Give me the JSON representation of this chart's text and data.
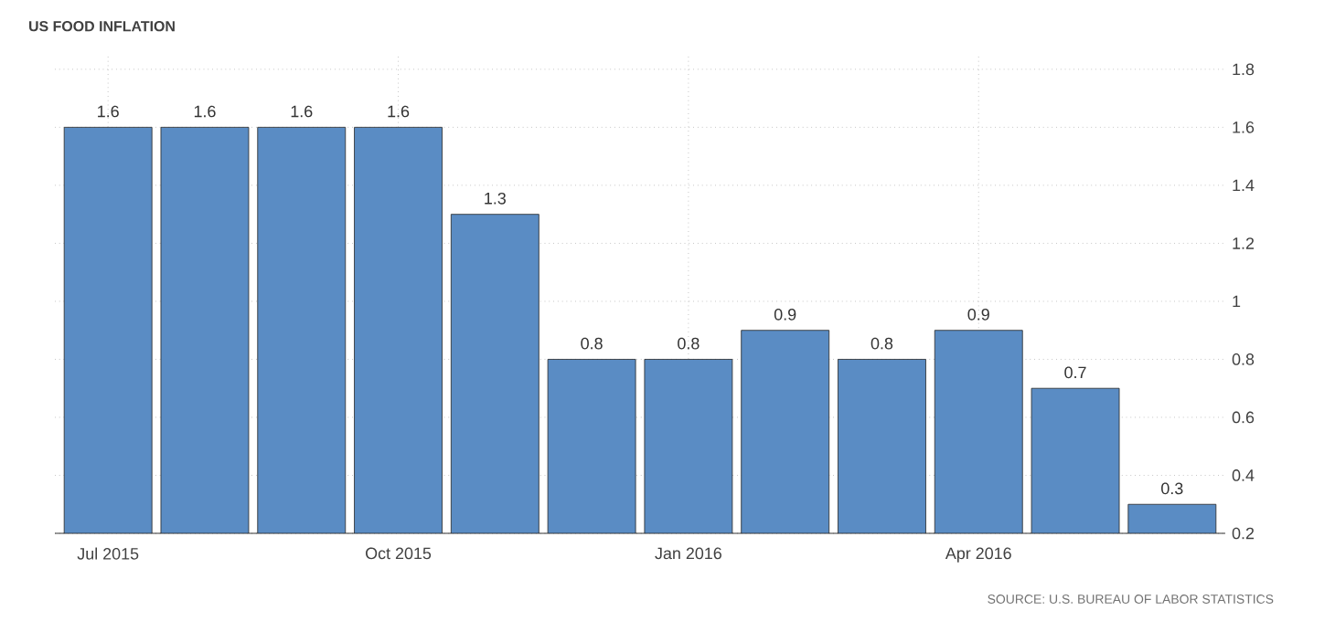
{
  "chart_data": {
    "type": "bar",
    "title": "US FOOD INFLATION",
    "categories": [
      "Jul 2015",
      null,
      null,
      "Oct 2015",
      null,
      null,
      "Jan 2016",
      null,
      null,
      "Apr 2016",
      null,
      null
    ],
    "values": [
      1.6,
      1.6,
      1.6,
      1.6,
      1.3,
      0.8,
      0.8,
      0.9,
      0.8,
      0.9,
      0.7,
      0.3
    ],
    "color": "#5a8cc4",
    "ylim": [
      0.2,
      1.85
    ],
    "yticks": [
      0.2,
      0.4,
      0.6,
      0.8,
      1,
      1.2,
      1.4,
      1.6,
      1.8
    ],
    "grid": true,
    "data_labels": true,
    "annotations": [
      "SOURCE: U.S. BUREAU OF LABOR STATISTICS"
    ]
  }
}
